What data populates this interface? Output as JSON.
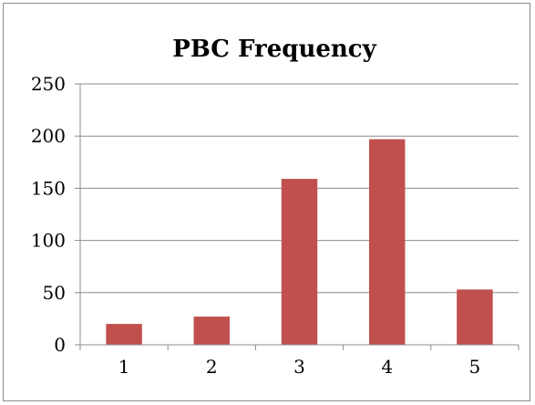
{
  "chart_data": {
    "type": "bar",
    "title": "PBC Frequency",
    "xlabel": "",
    "ylabel": "",
    "categories": [
      "1",
      "2",
      "3",
      "4",
      "5"
    ],
    "values": [
      20,
      27,
      159,
      197,
      53
    ],
    "ylim": [
      0,
      250
    ],
    "yticks": [
      0,
      50,
      100,
      150,
      200,
      250
    ],
    "grid": true,
    "legend": "none",
    "bar_color": "#c0504d",
    "grid_color": "#8c8c8c"
  }
}
